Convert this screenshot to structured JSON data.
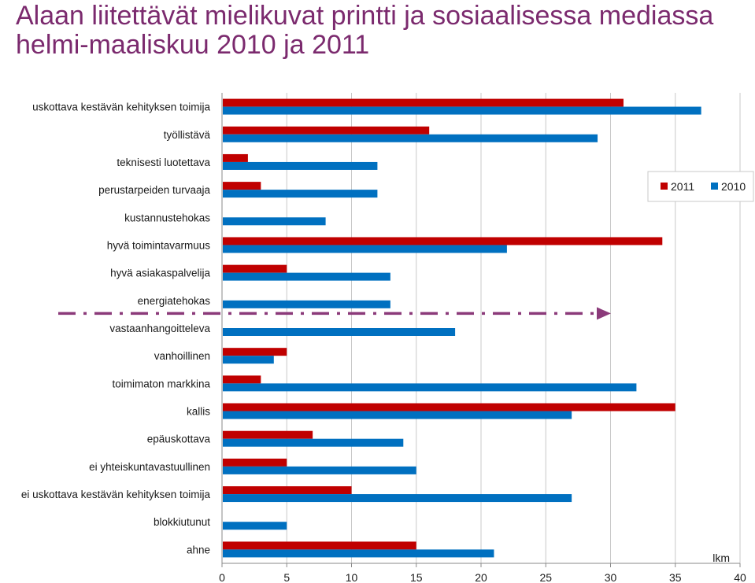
{
  "title": "Alaan liitettävät mielikuvat printti ja sosiaalisessa mediassa helmi-maaliskuu 2010 ja 2011",
  "chart_data": {
    "type": "bar",
    "orientation": "horizontal",
    "categories": [
      "uskottava kestävän kehityksen toimija",
      "työllistävä",
      "teknisesti luotettava",
      "perustarpeiden turvaaja",
      "kustannustehokas",
      "hyvä toimintavarmuus",
      "hyvä asiakaspalvelija",
      "energiatehokas",
      "vastaanhangoitteleva",
      "vanhoillinen",
      "toimimaton markkina",
      "kallis",
      "epäuskottava",
      "ei yhteiskuntavastuullinen",
      "ei uskottava kestävän kehityksen toimija",
      "blokkiutunut",
      "ahne"
    ],
    "series": [
      {
        "name": "2011",
        "color": "#c00000",
        "values": [
          31,
          16,
          2,
          3,
          0,
          34,
          5,
          0,
          0,
          5,
          3,
          35,
          7,
          5,
          10,
          0,
          15
        ]
      },
      {
        "name": "2010",
        "color": "#0070c0",
        "values": [
          37,
          29,
          12,
          12,
          8,
          22,
          13,
          13,
          18,
          4,
          32,
          27,
          14,
          15,
          27,
          5,
          21
        ]
      }
    ],
    "xlim": [
      0,
      40
    ],
    "xticks": [
      "0",
      "5",
      "10",
      "15",
      "20",
      "25",
      "30",
      "35",
      "40"
    ],
    "xlabel": "lkm",
    "grid": true,
    "legend_position": "top-right",
    "annotation": {
      "type": "dash-dot-arrow",
      "color": "#8b3a7a",
      "between": [
        "energiatehokas",
        "vastaanhangoitteleva"
      ]
    }
  }
}
